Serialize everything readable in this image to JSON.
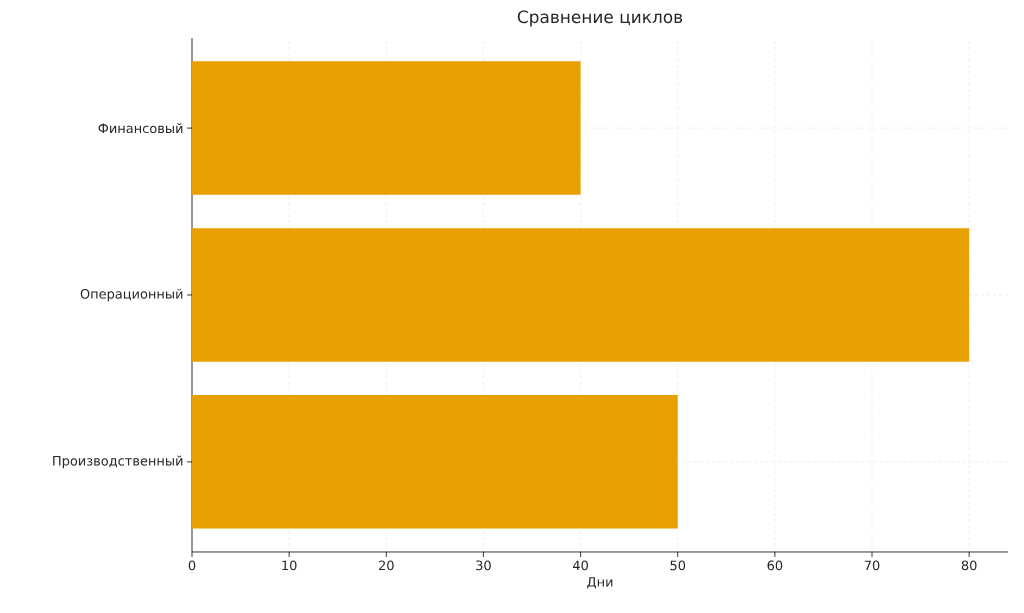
{
  "chart_data": {
    "type": "bar",
    "orientation": "horizontal",
    "title": "Сравнение циклов",
    "xlabel": "Дни",
    "categories": [
      "Финансовый",
      "Операционный",
      "Производственный"
    ],
    "values": [
      40,
      80,
      50
    ],
    "color": "#e8a000",
    "xlim": [
      0,
      84
    ],
    "xticks": [
      0,
      10,
      20,
      30,
      40,
      50,
      60,
      70,
      80
    ],
    "grid": true
  }
}
